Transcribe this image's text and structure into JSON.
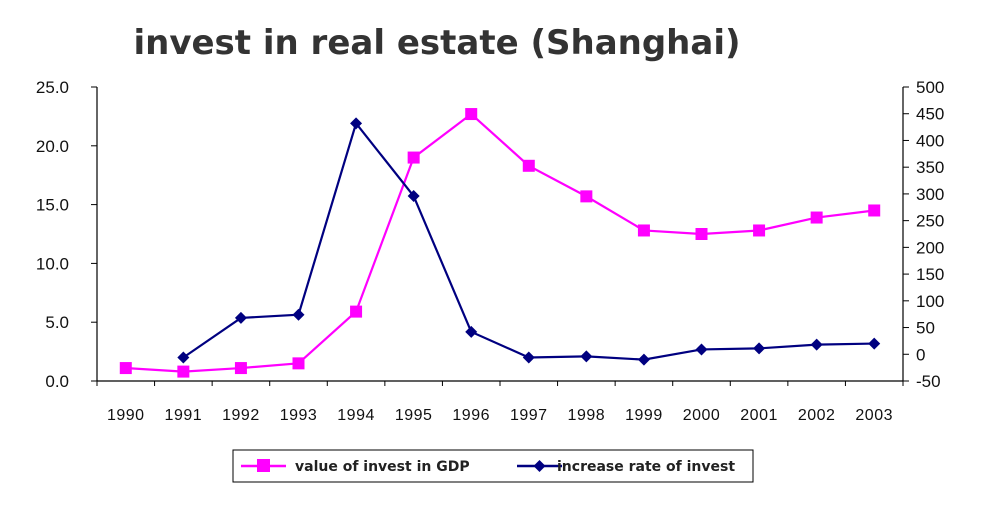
{
  "chart_data": {
    "type": "line",
    "title": "invest in real estate (Shanghai)",
    "categories": [
      "1990",
      "1991",
      "1992",
      "1993",
      "1994",
      "1995",
      "1996",
      "1997",
      "1998",
      "1999",
      "2000",
      "2001",
      "2002",
      "2003"
    ],
    "y_left": {
      "ylim": [
        0,
        25
      ],
      "ticks": [
        "0.0",
        "5.0",
        "10.0",
        "15.0",
        "20.0",
        "25.0"
      ]
    },
    "y_right": {
      "ylim": [
        -50,
        500
      ],
      "ticks": [
        "-50",
        "0",
        "50",
        "100",
        "150",
        "200",
        "250",
        "300",
        "350",
        "400",
        "450",
        "500"
      ]
    },
    "series": [
      {
        "name": "value of invest in GDP",
        "axis": "left",
        "color": "#ff00ff",
        "marker": "square",
        "values": [
          1.1,
          0.8,
          1.1,
          1.5,
          5.9,
          19.0,
          22.7,
          18.3,
          15.7,
          12.8,
          12.5,
          12.8,
          13.9,
          14.5
        ]
      },
      {
        "name": "increase rate of invest",
        "axis": "right",
        "color": "#000080",
        "marker": "diamond",
        "values": [
          null,
          -6,
          68,
          74,
          432,
          296,
          42,
          -6,
          -4,
          -10,
          9,
          11,
          18,
          20
        ]
      }
    ],
    "legend_position": "bottom"
  }
}
